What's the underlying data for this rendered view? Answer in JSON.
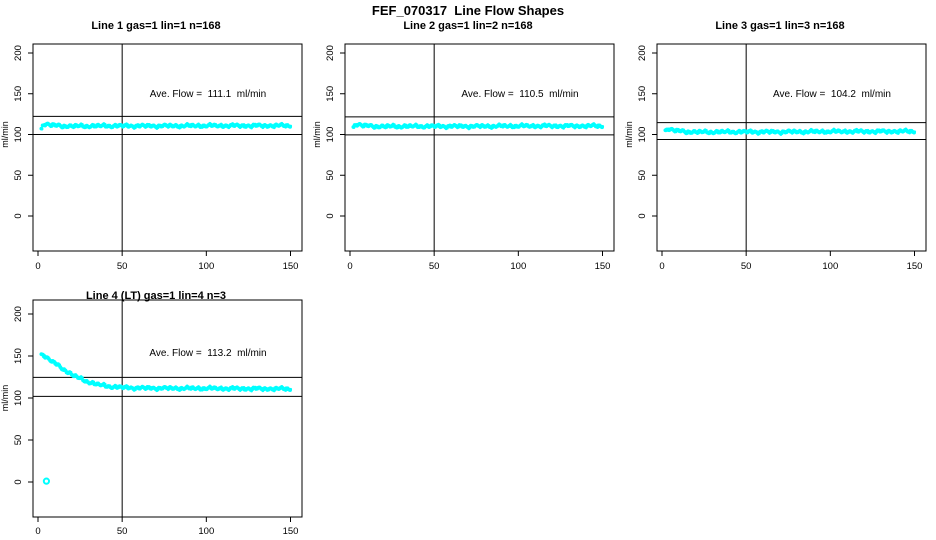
{
  "main_title": "FEF_070317  Line Flow Shapes",
  "ylabel": "ml/min",
  "colors": {
    "points": "#00ffff",
    "axis": "#000000",
    "background": "#ffffff"
  },
  "chart_data": [
    {
      "type": "scatter",
      "title": "Line 1 gas=1 lin=1 n=168",
      "annotation": "Ave. Flow =  111.1  ml/min",
      "ave_flow_ml_min": 111.1,
      "n": 168,
      "xlim": [
        0,
        150
      ],
      "ylim": [
        0,
        200
      ],
      "x_ticks": [
        0,
        50,
        100,
        150
      ],
      "y_ticks": [
        0,
        50,
        100,
        150,
        200
      ],
      "vline_x": 50,
      "ref_lines": [
        122.2,
        100.0
      ],
      "centerline": [
        [
          2,
          107
        ],
        [
          3,
          112
        ],
        [
          5,
          113
        ],
        [
          7,
          112
        ],
        [
          10,
          111
        ],
        [
          15,
          110.5
        ],
        [
          25,
          110.3
        ],
        [
          40,
          110.5
        ],
        [
          60,
          110.6
        ],
        [
          90,
          110.7
        ],
        [
          120,
          110.8
        ],
        [
          150,
          111
        ]
      ],
      "outliers": []
    },
    {
      "type": "scatter",
      "title": "Line 2 gas=1 lin=2 n=168",
      "annotation": "Ave. Flow =  110.5  ml/min",
      "ave_flow_ml_min": 110.5,
      "n": 168,
      "xlim": [
        0,
        150
      ],
      "ylim": [
        0,
        200
      ],
      "x_ticks": [
        0,
        50,
        100,
        150
      ],
      "y_ticks": [
        0,
        50,
        100,
        150,
        200
      ],
      "vline_x": 50,
      "ref_lines": [
        121.6,
        99.5
      ],
      "centerline": [
        [
          2,
          109
        ],
        [
          3,
          112
        ],
        [
          5,
          112.5
        ],
        [
          8,
          111
        ],
        [
          12,
          110.3
        ],
        [
          20,
          110
        ],
        [
          40,
          110
        ],
        [
          70,
          110.2
        ],
        [
          110,
          110.4
        ],
        [
          150,
          110.6
        ]
      ],
      "outliers": []
    },
    {
      "type": "scatter",
      "title": "Line 3 gas=1 lin=3 n=168",
      "annotation": "Ave. Flow =  104.2  ml/min",
      "ave_flow_ml_min": 104.2,
      "n": 168,
      "xlim": [
        0,
        150
      ],
      "ylim": [
        0,
        200
      ],
      "x_ticks": [
        0,
        50,
        100,
        150
      ],
      "y_ticks": [
        0,
        50,
        100,
        150,
        200
      ],
      "vline_x": 50,
      "ref_lines": [
        114.6,
        93.8
      ],
      "centerline": [
        [
          2,
          105
        ],
        [
          4,
          107
        ],
        [
          6,
          106
        ],
        [
          9,
          104.5
        ],
        [
          14,
          103.5
        ],
        [
          25,
          103
        ],
        [
          50,
          103.2
        ],
        [
          90,
          103.5
        ],
        [
          130,
          103.8
        ],
        [
          150,
          104
        ]
      ],
      "outliers": []
    },
    {
      "type": "scatter",
      "title": "Line 4 (LT) gas=1 lin=4 n=3",
      "annotation": "Ave. Flow =  113.2  ml/min",
      "ave_flow_ml_min": 113.2,
      "n": 3,
      "xlim": [
        0,
        150
      ],
      "ylim": [
        0,
        200
      ],
      "x_ticks": [
        0,
        50,
        100,
        150
      ],
      "y_ticks": [
        0,
        50,
        100,
        150,
        200
      ],
      "vline_x": 50,
      "ref_lines": [
        124.5,
        101.9
      ],
      "centerline": [
        [
          2,
          152
        ],
        [
          3,
          151
        ],
        [
          5,
          148.5
        ],
        [
          7,
          145.5
        ],
        [
          9,
          142.5
        ],
        [
          12,
          138.5
        ],
        [
          15,
          134.5
        ],
        [
          18,
          130.5
        ],
        [
          21,
          127
        ],
        [
          24,
          124
        ],
        [
          28,
          120.5
        ],
        [
          32,
          117.8
        ],
        [
          36,
          115.8
        ],
        [
          40,
          114.3
        ],
        [
          45,
          113.2
        ],
        [
          50,
          112.5
        ],
        [
          58,
          112
        ],
        [
          70,
          111.8
        ],
        [
          90,
          111.5
        ],
        [
          115,
          111.2
        ],
        [
          150,
          111
        ]
      ],
      "outliers": [
        [
          5,
          1
        ]
      ]
    }
  ]
}
